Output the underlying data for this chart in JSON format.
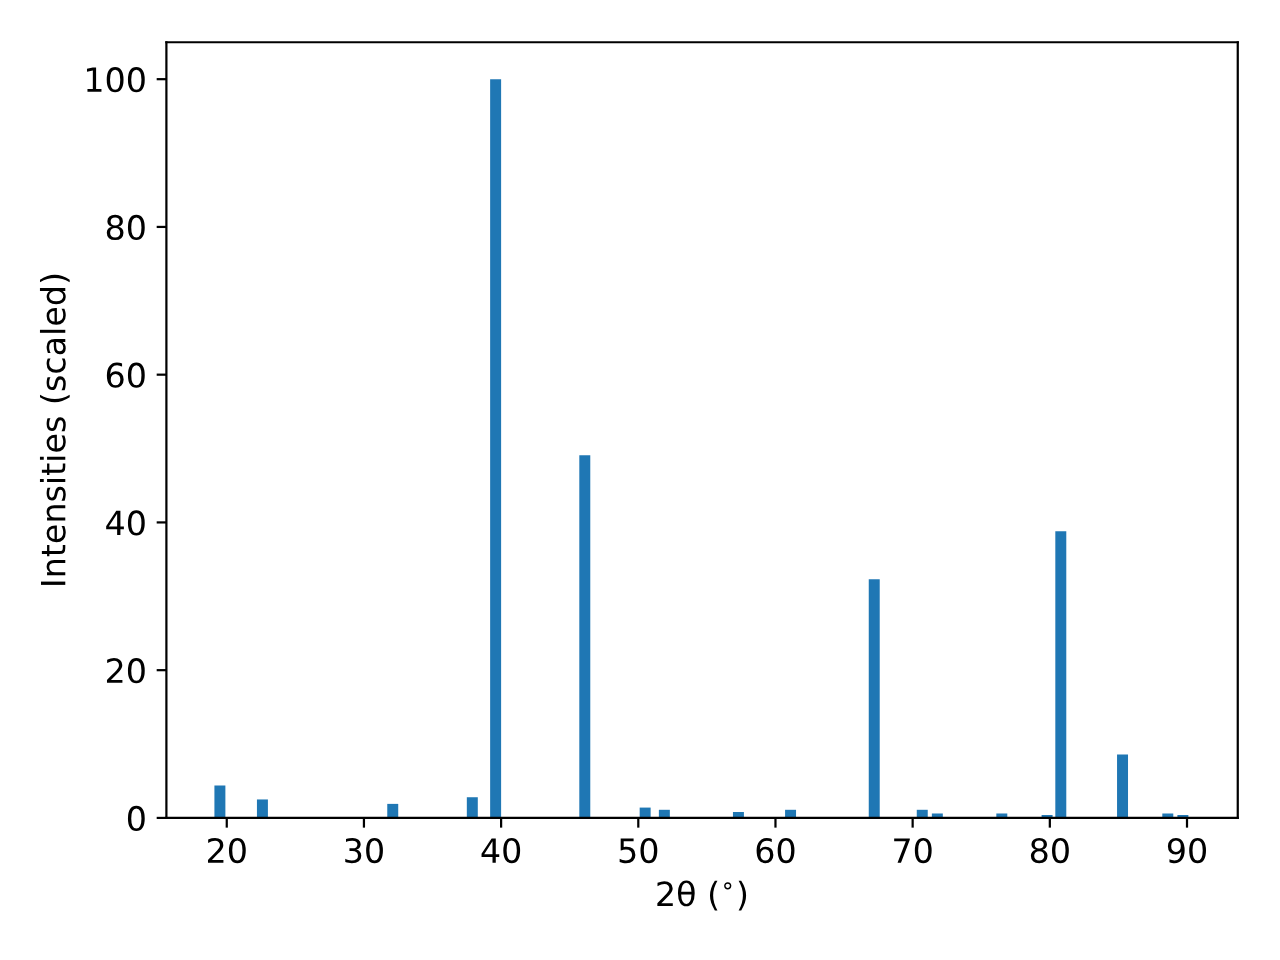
{
  "chart_data": {
    "type": "bar",
    "xlabel": "2θ ($^{∘}$)",
    "ylabel": "Intensities (scaled)",
    "x": [
      19.5,
      22.6,
      32.1,
      37.9,
      39.6,
      46.1,
      50.5,
      51.9,
      57.3,
      61.1,
      67.2,
      70.7,
      71.8,
      76.5,
      79.8,
      80.8,
      85.3,
      88.6,
      89.7
    ],
    "values": [
      4.4,
      2.5,
      1.9,
      2.8,
      100,
      49.1,
      1.4,
      1.1,
      0.8,
      1.1,
      32.3,
      1.1,
      0.6,
      0.6,
      0.4,
      38.8,
      8.6,
      0.6,
      0.4
    ],
    "color": "#1f77b4",
    "xlim": [
      15.6,
      93.7
    ],
    "ylim": [
      0,
      105
    ],
    "xticks": [
      20,
      30,
      40,
      50,
      60,
      70,
      80,
      90
    ],
    "yticks": [
      0,
      20,
      40,
      60,
      80,
      100
    ],
    "grid": false,
    "legend": false
  }
}
